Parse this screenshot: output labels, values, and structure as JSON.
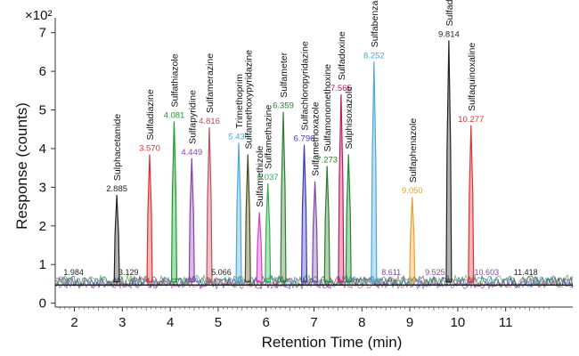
{
  "chart_data": {
    "type": "line",
    "title": "",
    "xlabel": "Retention Time (min)",
    "ylabel": "Response (counts)",
    "y_multiplier_label": "×10²",
    "xlim": [
      1.6,
      12.4
    ],
    "ylim": [
      -0.1,
      7.2
    ],
    "x_ticks": [
      "2",
      "3",
      "4",
      "5",
      "6",
      "7",
      "8",
      "9",
      "10",
      "11"
    ],
    "y_ticks": [
      "0",
      "1",
      "2",
      "3",
      "4",
      "5",
      "6",
      "7"
    ],
    "grid": false,
    "legend": "none",
    "baseline_level": 0.55,
    "peaks": [
      {
        "rt": 2.885,
        "rt_label": "2.885",
        "height": 2.8,
        "compound": "Sulphacetamide",
        "color": "#222222"
      },
      {
        "rt": 3.57,
        "rt_label": "3.570",
        "height": 3.85,
        "compound": "Sulfadiazine",
        "color": "#e03030"
      },
      {
        "rt": 4.081,
        "rt_label": "4.081",
        "height": 4.7,
        "compound": "Sulfathiazole",
        "color": "#1c9a2c"
      },
      {
        "rt": 4.449,
        "rt_label": "4.449",
        "height": 3.75,
        "compound": "Sulfapyridine",
        "color": "#8a3fb0"
      },
      {
        "rt": 4.816,
        "rt_label": "4.816",
        "height": 4.55,
        "compound": "Sulfamerazine",
        "color": "#c05060"
      },
      {
        "rt": 5.43,
        "rt_label": "5.430",
        "height": 4.15,
        "compound": "Trimethoprim",
        "color": "#4aa8dc"
      },
      {
        "rt": 5.62,
        "rt_label": "",
        "height": 3.85,
        "compound": "Sulfamethoxypyridazine",
        "color": "#4a4a1a"
      },
      {
        "rt": 5.86,
        "rt_label": "",
        "height": 2.35,
        "compound": "Sulfamethizole",
        "color": "#d63cc8"
      },
      {
        "rt": 6.037,
        "rt_label": "6.037",
        "height": 3.1,
        "compound": "Sulfamethazine",
        "color": "#30b050"
      },
      {
        "rt": 6.359,
        "rt_label": "6.359",
        "height": 4.95,
        "compound": "Sulfameter",
        "color": "#2e7d32"
      },
      {
        "rt": 6.796,
        "rt_label": "6.796",
        "height": 4.1,
        "compound": "Sulfachloropyridazine",
        "color": "#3a3ab8"
      },
      {
        "rt": 7.02,
        "rt_label": "",
        "height": 3.15,
        "compound": "Sulfamethoxazole",
        "color": "#7a4aa0"
      },
      {
        "rt": 7.273,
        "rt_label": "7.273",
        "height": 3.55,
        "compound": "Sulfamonomethoxine",
        "color": "#2b7a2b"
      },
      {
        "rt": 7.565,
        "rt_label": "7.565",
        "height": 5.4,
        "compound": "Sulfadoxine",
        "color": "#c2185b"
      },
      {
        "rt": 7.72,
        "rt_label": "",
        "height": 3.85,
        "compound": "Sulphisoxazole",
        "color": "#1f8a2f"
      },
      {
        "rt": 8.252,
        "rt_label": "8.252",
        "height": 6.25,
        "compound": "Sulfabenzamide",
        "color": "#4aa8dc"
      },
      {
        "rt": 9.05,
        "rt_label": "9.050",
        "height": 2.75,
        "compound": "Sulfaphenazole",
        "color": "#e8a030"
      },
      {
        "rt": 9.814,
        "rt_label": "9.814",
        "height": 6.8,
        "compound": "Sulfadimethoxine",
        "color": "#222222"
      },
      {
        "rt": 10.277,
        "rt_label": "10.277",
        "height": 4.6,
        "compound": "Sulfaquinoxaline",
        "color": "#e03030"
      }
    ],
    "noise_labels": [
      {
        "rt": 1.984,
        "label": "1.984",
        "color": "#222222"
      },
      {
        "rt": 3.129,
        "label": "3.129",
        "color": "#222222"
      },
      {
        "rt": 5.066,
        "label": "5.066",
        "color": "#222222"
      },
      {
        "rt": 8.611,
        "label": "8.611",
        "color": "#8a3fb0"
      },
      {
        "rt": 9.525,
        "label": "9.525",
        "color": "#8a3fb0"
      },
      {
        "rt": 10.603,
        "label": "10.603",
        "color": "#8a3fb0"
      },
      {
        "rt": 11.418,
        "label": "11.418",
        "color": "#222222"
      }
    ]
  }
}
